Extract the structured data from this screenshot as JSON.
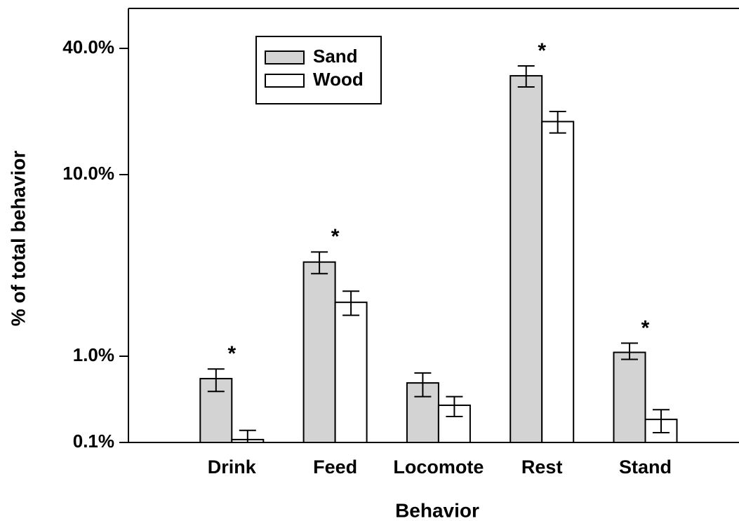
{
  "chart_data": {
    "type": "bar",
    "x_label": "Behavior",
    "y_label": "% of total behavior",
    "categories": [
      "Drink",
      "Feed",
      "Locomote",
      "Rest",
      "Stand"
    ],
    "series": [
      {
        "name": "Sand",
        "color": "#d3d3d3",
        "values": [
          0.55,
          3.3,
          0.49,
          29.6,
          1.05
        ],
        "errors": [
          0.16,
          0.45,
          0.15,
          3.4,
          0.13
        ]
      },
      {
        "name": "Wood",
        "color": "#ffffff",
        "values": [
          0.108,
          1.98,
          0.27,
          17.9,
          0.185
        ],
        "errors": [
          0.03,
          0.3,
          0.07,
          2.1,
          0.055
        ]
      }
    ],
    "significance": [
      "*",
      "*",
      null,
      "*",
      "*"
    ],
    "ylim": [
      0.1,
      62
    ],
    "yticks": [
      {
        "value": 0.1,
        "label": "0.1%"
      },
      {
        "value": 1,
        "label": "1.0%"
      },
      {
        "value": 10,
        "label": "10.0%"
      },
      {
        "value": 40,
        "label": "40.0%"
      }
    ],
    "legend": "upper left"
  }
}
